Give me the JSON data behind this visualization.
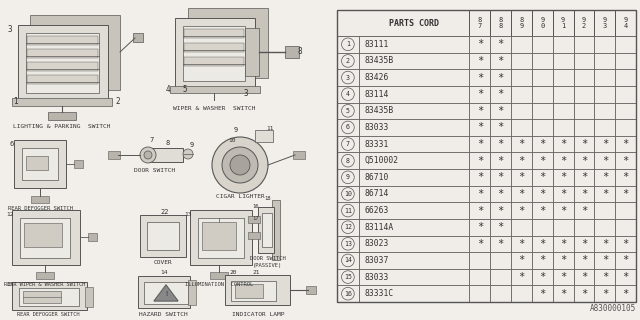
{
  "part_numbers": [
    "83111",
    "83435B",
    "83426",
    "83114",
    "83435B",
    "83033",
    "83331",
    "Q510002",
    "86710",
    "86714",
    "66263",
    "83114A",
    "83023",
    "83037",
    "83033",
    "83331C"
  ],
  "years": [
    "8\n7",
    "8\n8",
    "8\n9",
    "9\n0",
    "9\n1",
    "9\n2",
    "9\n3",
    "9\n4"
  ],
  "year_labels": [
    "87",
    "88",
    "89",
    "90",
    "91",
    "92",
    "93",
    "94"
  ],
  "stars": [
    [
      1,
      1,
      0,
      0,
      0,
      0,
      0,
      0
    ],
    [
      1,
      1,
      0,
      0,
      0,
      0,
      0,
      0
    ],
    [
      1,
      1,
      0,
      0,
      0,
      0,
      0,
      0
    ],
    [
      1,
      1,
      0,
      0,
      0,
      0,
      0,
      0
    ],
    [
      1,
      1,
      0,
      0,
      0,
      0,
      0,
      0
    ],
    [
      1,
      1,
      0,
      0,
      0,
      0,
      0,
      0
    ],
    [
      1,
      1,
      1,
      1,
      1,
      1,
      1,
      1
    ],
    [
      1,
      1,
      1,
      1,
      1,
      1,
      1,
      1
    ],
    [
      1,
      1,
      1,
      1,
      1,
      1,
      1,
      1
    ],
    [
      1,
      1,
      1,
      1,
      1,
      1,
      1,
      1
    ],
    [
      1,
      1,
      1,
      1,
      1,
      1,
      0,
      0
    ],
    [
      1,
      1,
      0,
      0,
      0,
      0,
      0,
      0
    ],
    [
      1,
      1,
      1,
      1,
      1,
      1,
      1,
      1
    ],
    [
      0,
      0,
      1,
      1,
      1,
      1,
      1,
      1
    ],
    [
      0,
      0,
      1,
      1,
      1,
      1,
      1,
      1
    ],
    [
      0,
      0,
      0,
      1,
      1,
      1,
      1,
      1
    ]
  ],
  "watermark": "A830000105",
  "bg_color": "#f2efea",
  "line_color": "#555555",
  "text_color": "#333333",
  "fill_outer": "#e0ddd6",
  "fill_inner": "#eceae4"
}
